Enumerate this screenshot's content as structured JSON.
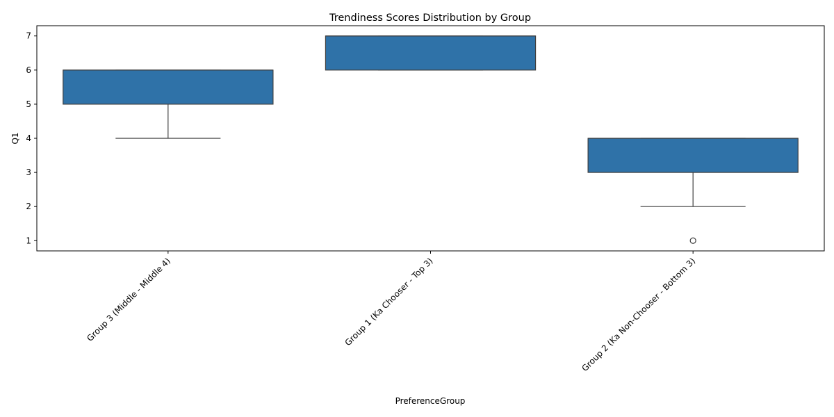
{
  "chart_data": {
    "type": "box",
    "title": "Trendiness Scores Distribution by Group",
    "xlabel": "PreferenceGroup",
    "ylabel": "Q1",
    "ylim": [
      0.7,
      7.3
    ],
    "yticks": [
      1,
      2,
      3,
      4,
      5,
      6,
      7
    ],
    "grid": false,
    "box_color": "#2f72a8",
    "line_color": "#3f3f3f",
    "categories": [
      "Group 3 (Middle - Middle 4)",
      "Group 1 (Ka Chooser - Top 3)",
      "Group 2 (Ka Non-Chooser - Bottom 3)"
    ],
    "boxes": [
      {
        "category": "Group 3 (Middle - Middle 4)",
        "whislo": 4,
        "q1": 5,
        "med": 6,
        "q3": 6,
        "whishi": 6,
        "fliers": []
      },
      {
        "category": "Group 1 (Ka Chooser - Top 3)",
        "whislo": 6,
        "q1": 6,
        "med": 7,
        "q3": 7,
        "whishi": 7,
        "fliers": []
      },
      {
        "category": "Group 2 (Ka Non-Chooser - Bottom 3)",
        "whislo": 2,
        "q1": 3,
        "med": 4,
        "q3": 4,
        "whishi": 4,
        "fliers": [
          1
        ]
      }
    ]
  }
}
